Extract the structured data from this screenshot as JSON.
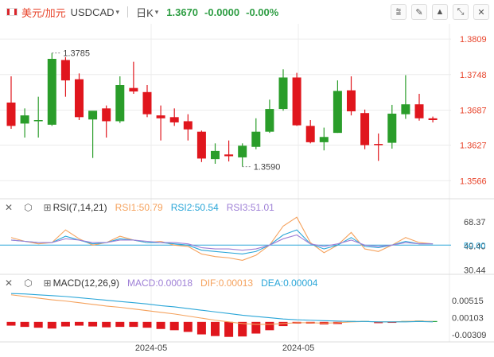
{
  "header": {
    "symbol_cn": "美元/加元",
    "symbol_code": "USDCAD",
    "caret": "▾",
    "period": "日K",
    "period_caret": "▾",
    "price": "1.3670",
    "change": "-0.0000",
    "change_pct": "-0.00%",
    "color_up": "#2f9e44"
  },
  "toolbar": [
    {
      "name": "indicator-settings-icon",
      "glyph": "⩰"
    },
    {
      "name": "draw-tools-icon",
      "glyph": "✎"
    },
    {
      "name": "chart-style-icon",
      "glyph": "▲"
    },
    {
      "name": "collapse-icon",
      "glyph": "⤡"
    },
    {
      "name": "close-icon",
      "glyph": "✕"
    }
  ],
  "colors": {
    "up": "#2a9d2a",
    "down": "#e0161d",
    "rsi1": "#f5a25d",
    "rsi2": "#2aa6d8",
    "rsi3": "#9e7fd6",
    "macd_up": "#1fa33a",
    "macd_down": "#e0161d",
    "dif": "#f5a25d",
    "dea": "#2aa6d8",
    "grid": "#ececec"
  },
  "chart_data": [
    {
      "type": "candlestick",
      "title": "",
      "ylim": [
        1.3535,
        1.3835
      ],
      "yticks": [
        "1.3809",
        "1.3748",
        "1.3687",
        "1.3627",
        "1.3566"
      ],
      "high_label": "1.3785",
      "low_label": "1.3590",
      "candles": [
        {
          "o": 1.37,
          "h": 1.3745,
          "l": 1.3655,
          "c": 1.366
        },
        {
          "o": 1.3664,
          "h": 1.369,
          "l": 1.364,
          "c": 1.3678
        },
        {
          "o": 1.3668,
          "h": 1.371,
          "l": 1.364,
          "c": 1.367
        },
        {
          "o": 1.3662,
          "h": 1.3785,
          "l": 1.366,
          "c": 1.3775
        },
        {
          "o": 1.3773,
          "h": 1.3778,
          "l": 1.371,
          "c": 1.3738
        },
        {
          "o": 1.374,
          "h": 1.375,
          "l": 1.367,
          "c": 1.3675
        },
        {
          "o": 1.3671,
          "h": 1.3683,
          "l": 1.3605,
          "c": 1.3686
        },
        {
          "o": 1.369,
          "h": 1.3695,
          "l": 1.364,
          "c": 1.3668
        },
        {
          "o": 1.3668,
          "h": 1.3745,
          "l": 1.3665,
          "c": 1.373
        },
        {
          "o": 1.3725,
          "h": 1.377,
          "l": 1.3715,
          "c": 1.3719
        },
        {
          "o": 1.3718,
          "h": 1.373,
          "l": 1.3675,
          "c": 1.368
        },
        {
          "o": 1.3678,
          "h": 1.3695,
          "l": 1.3635,
          "c": 1.3673
        },
        {
          "o": 1.3675,
          "h": 1.369,
          "l": 1.366,
          "c": 1.3666
        },
        {
          "o": 1.3668,
          "h": 1.368,
          "l": 1.3635,
          "c": 1.3654
        },
        {
          "o": 1.365,
          "h": 1.3652,
          "l": 1.3598,
          "c": 1.3604
        },
        {
          "o": 1.3603,
          "h": 1.363,
          "l": 1.3595,
          "c": 1.3617
        },
        {
          "o": 1.3611,
          "h": 1.3635,
          "l": 1.3599,
          "c": 1.3608
        },
        {
          "o": 1.3606,
          "h": 1.363,
          "l": 1.359,
          "c": 1.3626
        },
        {
          "o": 1.3624,
          "h": 1.3673,
          "l": 1.362,
          "c": 1.365
        },
        {
          "o": 1.365,
          "h": 1.3705,
          "l": 1.3648,
          "c": 1.3689
        },
        {
          "o": 1.3689,
          "h": 1.3757,
          "l": 1.3686,
          "c": 1.3743
        },
        {
          "o": 1.3743,
          "h": 1.3751,
          "l": 1.366,
          "c": 1.3661
        },
        {
          "o": 1.366,
          "h": 1.367,
          "l": 1.363,
          "c": 1.3632
        },
        {
          "o": 1.3632,
          "h": 1.3657,
          "l": 1.3618,
          "c": 1.3641
        },
        {
          "o": 1.3648,
          "h": 1.3738,
          "l": 1.3648,
          "c": 1.372
        },
        {
          "o": 1.3721,
          "h": 1.3745,
          "l": 1.3678,
          "c": 1.3685
        },
        {
          "o": 1.3682,
          "h": 1.3688,
          "l": 1.362,
          "c": 1.3627
        },
        {
          "o": 1.3629,
          "h": 1.3647,
          "l": 1.36,
          "c": 1.3628
        },
        {
          "o": 1.3631,
          "h": 1.3696,
          "l": 1.3621,
          "c": 1.3681
        },
        {
          "o": 1.368,
          "h": 1.3747,
          "l": 1.3672,
          "c": 1.3697
        },
        {
          "o": 1.3697,
          "h": 1.3715,
          "l": 1.3669,
          "c": 1.3673
        },
        {
          "o": 1.3673,
          "h": 1.3676,
          "l": 1.3666,
          "c": 1.367
        }
      ]
    },
    {
      "type": "line",
      "name": "RSI",
      "label": "RSI(7,14,21)",
      "ylim": [
        27,
        74
      ],
      "yticks": [
        "68.37",
        "49.40",
        "30.44"
      ],
      "ref_label": "50.00",
      "series": [
        {
          "name": "RSI1",
          "label": "RSI1:50.79",
          "values": [
            56,
            53,
            51,
            52,
            62,
            55,
            50,
            52,
            57,
            54,
            52,
            53,
            50,
            49,
            43,
            41,
            40,
            38,
            42,
            50,
            65,
            72,
            52,
            44,
            50,
            60,
            47,
            45,
            50,
            56,
            52,
            51
          ]
        },
        {
          "name": "RSI2",
          "label": "RSI2:50.54",
          "values": [
            54,
            53,
            52,
            52,
            57,
            54,
            51,
            52,
            55,
            54,
            52,
            52,
            51,
            50,
            46,
            45,
            44,
            43,
            45,
            50,
            58,
            62,
            51,
            47,
            50,
            56,
            49,
            48,
            50,
            53,
            51,
            51
          ]
        },
        {
          "name": "RSI3",
          "label": "RSI3:51.01",
          "values": [
            54,
            53,
            52,
            52,
            55,
            54,
            52,
            52,
            54,
            54,
            53,
            52,
            52,
            51,
            48,
            47,
            47,
            46,
            47,
            50,
            55,
            58,
            51,
            49,
            51,
            54,
            50,
            49,
            50,
            52,
            51,
            51
          ]
        }
      ]
    },
    {
      "type": "bar",
      "name": "MACD",
      "label": "MACD(12,26,9)",
      "ylim": [
        -0.0048,
        0.0076
      ],
      "yticks": [
        "0.00515",
        "0.00103",
        "-0.00309"
      ],
      "series": [
        {
          "name": "MACD",
          "label": "MACD:0.00018",
          "values": [
            -0.0009,
            -0.0012,
            -0.0014,
            -0.0016,
            -0.0011,
            -0.0009,
            -0.0011,
            -0.0013,
            -0.0012,
            -0.0012,
            -0.0014,
            -0.0017,
            -0.002,
            -0.0024,
            -0.003,
            -0.0034,
            -0.0036,
            -0.0035,
            -0.0028,
            -0.002,
            -0.001,
            -0.0004,
            -0.0004,
            -0.0006,
            -0.0005,
            0.0002,
            0.0002,
            -0.0003,
            -0.0002,
            0.0002,
            0.0003,
            0.0002
          ]
        },
        {
          "name": "DIF",
          "label": "DIF:0.00013",
          "values": [
            0.0065,
            0.0061,
            0.0057,
            0.0053,
            0.005,
            0.0046,
            0.0042,
            0.0038,
            0.0035,
            0.0031,
            0.0027,
            0.0023,
            0.0019,
            0.0014,
            0.0009,
            0.0004,
            0.0,
            -0.0004,
            -0.0006,
            -0.0006,
            -0.0004,
            -0.0002,
            -0.0002,
            -0.0003,
            -0.0002,
            0.0,
            0.0001,
            0.0,
            0.0,
            0.0001,
            0.0002,
            0.0001
          ]
        },
        {
          "name": "DEA",
          "label": "DEA:0.00004",
          "values": [
            0.0068,
            0.0067,
            0.0065,
            0.0063,
            0.0061,
            0.0058,
            0.0055,
            0.0052,
            0.0049,
            0.0046,
            0.0043,
            0.0039,
            0.0036,
            0.0032,
            0.0028,
            0.0024,
            0.002,
            0.0016,
            0.0013,
            0.001,
            0.0007,
            0.0005,
            0.0004,
            0.0003,
            0.0002,
            0.0001,
            0.0001,
            0.0,
            0.0,
            0.0,
            0.0001,
            0.0
          ]
        }
      ],
      "x_tick_labels": [
        "2024-05",
        "2024-05"
      ]
    }
  ]
}
